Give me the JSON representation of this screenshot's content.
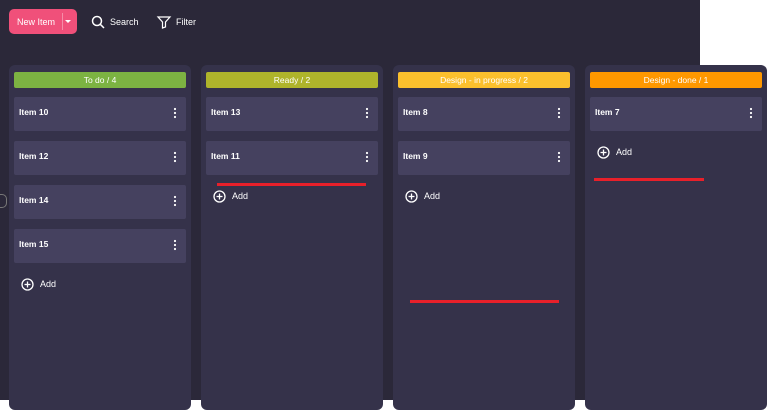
{
  "toolbar": {
    "new_item": "New Item",
    "search": "Search",
    "filter": "Filter"
  },
  "columns": [
    {
      "title": "To do / 4",
      "color": "#7cb342",
      "items": [
        "Item 10",
        "Item 12",
        "Item 14",
        "Item 15"
      ],
      "add": "Add"
    },
    {
      "title": "Ready / 2",
      "color": "#afb42b",
      "items": [
        "Item 13",
        "Item 11"
      ],
      "add": "Add"
    },
    {
      "title": "Design - in progress / 2",
      "color": "#fbc02d",
      "items": [
        "Item 8",
        "Item 9"
      ],
      "add": "Add"
    },
    {
      "title": "Design - done / 1",
      "color": "#ff9800",
      "items": [
        "Item 7"
      ],
      "add": "Add"
    }
  ]
}
